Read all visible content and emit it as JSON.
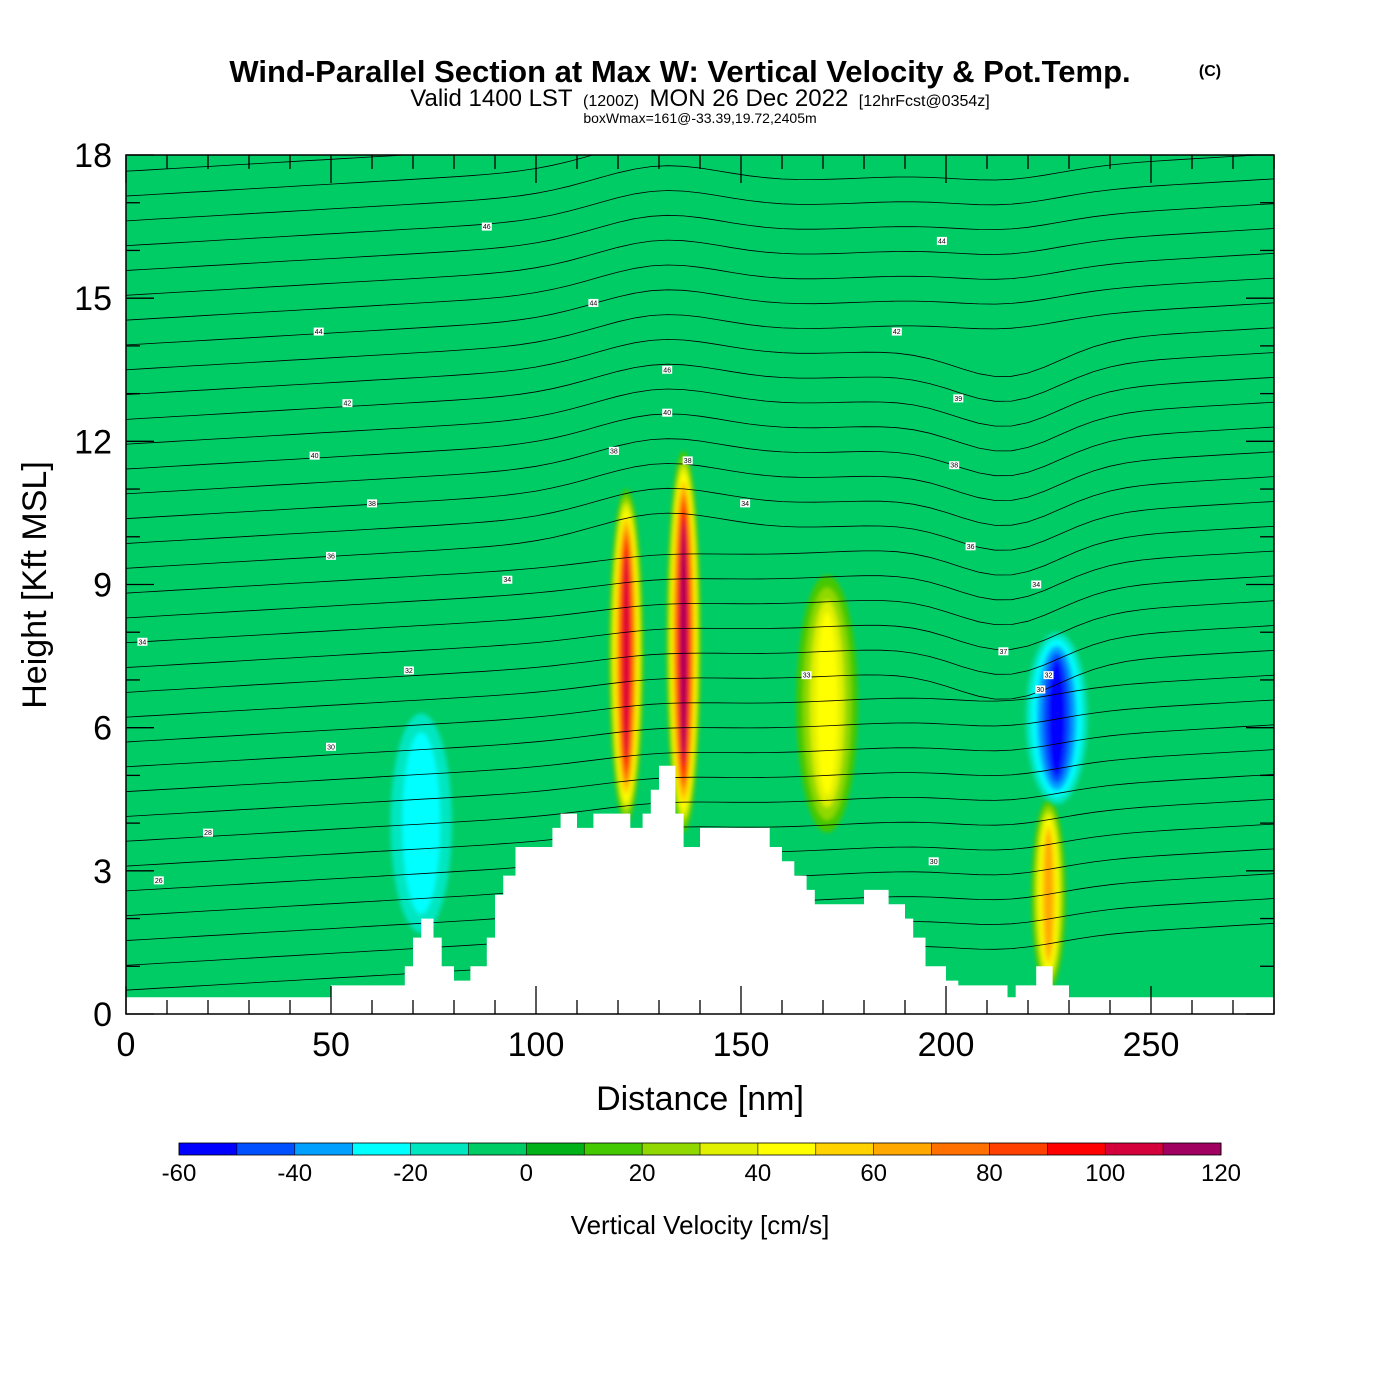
{
  "title": {
    "main": "Wind-Parallel Section at Max W: Vertical Velocity & Pot.Temp.",
    "copyright": "(C)",
    "valid_prefix": "Valid 1400 LST",
    "valid_utc": "(1200Z)",
    "valid_date": "MON 26 Dec 2022",
    "forecast": "[12hrFcst@0354z]",
    "box_info": "boxWmax=161@-33.39,19.72,2405m"
  },
  "chart_data": {
    "type": "heatmap",
    "xlabel": "Distance [nm]",
    "ylabel": "Height [Kft MSL]",
    "xlim": [
      0,
      280
    ],
    "ylim": [
      0,
      18
    ],
    "x_ticks": [
      "0",
      "50",
      "100",
      "150",
      "200",
      "250"
    ],
    "y_ticks": [
      "0",
      "3",
      "6",
      "9",
      "12",
      "15",
      "18"
    ],
    "background_value": 0,
    "updrafts": [
      {
        "x": 122,
        "y_center": 7.5,
        "y_top": 11.0,
        "peak": 100
      },
      {
        "x": 136,
        "y_center": 7.8,
        "y_top": 11.8,
        "peak": 110
      },
      {
        "x": 171,
        "y_center": 6.5,
        "y_top": 9.2,
        "peak": 45
      },
      {
        "x": 225,
        "y_center": 2.5,
        "y_top": 4.5,
        "peak": 65
      },
      {
        "x": 72,
        "y_center": 4.0,
        "y_top": 6.3,
        "peak": -25
      },
      {
        "x": 227,
        "y_center": 6.2,
        "y_top": 8.0,
        "peak": -55
      }
    ],
    "terrain": [
      [
        0,
        0.35
      ],
      [
        50,
        0.35
      ],
      [
        50,
        0.6
      ],
      [
        68,
        0.6
      ],
      [
        68,
        1.0
      ],
      [
        70,
        1.0
      ],
      [
        70,
        1.6
      ],
      [
        72,
        1.6
      ],
      [
        72,
        2.0
      ],
      [
        75,
        2.0
      ],
      [
        75,
        1.6
      ],
      [
        77,
        1.6
      ],
      [
        77,
        1.0
      ],
      [
        80,
        1.0
      ],
      [
        80,
        0.7
      ],
      [
        84,
        0.7
      ],
      [
        84,
        1.0
      ],
      [
        88,
        1.0
      ],
      [
        88,
        1.6
      ],
      [
        90,
        1.6
      ],
      [
        90,
        2.5
      ],
      [
        92,
        2.5
      ],
      [
        92,
        2.9
      ],
      [
        95,
        2.9
      ],
      [
        95,
        3.5
      ],
      [
        104,
        3.5
      ],
      [
        104,
        3.9
      ],
      [
        106,
        3.9
      ],
      [
        106,
        4.2
      ],
      [
        110,
        4.2
      ],
      [
        110,
        3.9
      ],
      [
        114,
        3.9
      ],
      [
        114,
        4.2
      ],
      [
        123,
        4.2
      ],
      [
        123,
        3.9
      ],
      [
        126,
        3.9
      ],
      [
        126,
        4.2
      ],
      [
        128,
        4.2
      ],
      [
        128,
        4.7
      ],
      [
        130,
        4.7
      ],
      [
        130,
        5.2
      ],
      [
        134,
        5.2
      ],
      [
        134,
        4.2
      ],
      [
        136,
        4.2
      ],
      [
        136,
        3.5
      ],
      [
        140,
        3.5
      ],
      [
        140,
        3.9
      ],
      [
        157,
        3.9
      ],
      [
        157,
        3.5
      ],
      [
        160,
        3.5
      ],
      [
        160,
        3.2
      ],
      [
        163,
        3.2
      ],
      [
        163,
        2.9
      ],
      [
        166,
        2.9
      ],
      [
        166,
        2.6
      ],
      [
        168,
        2.6
      ],
      [
        168,
        2.3
      ],
      [
        180,
        2.3
      ],
      [
        180,
        2.6
      ],
      [
        186,
        2.6
      ],
      [
        186,
        2.3
      ],
      [
        190,
        2.3
      ],
      [
        190,
        2.0
      ],
      [
        192,
        2.0
      ],
      [
        192,
        1.6
      ],
      [
        195,
        1.6
      ],
      [
        195,
        1.0
      ],
      [
        200,
        1.0
      ],
      [
        200,
        0.7
      ],
      [
        203,
        0.7
      ],
      [
        203,
        0.6
      ],
      [
        215,
        0.6
      ],
      [
        215,
        0.35
      ],
      [
        217,
        0.35
      ],
      [
        217,
        0.6
      ],
      [
        222,
        0.6
      ],
      [
        222,
        1.0
      ],
      [
        226,
        1.0
      ],
      [
        226,
        0.6
      ],
      [
        230,
        0.6
      ],
      [
        230,
        0.35
      ],
      [
        280,
        0.35
      ]
    ],
    "contour_labels": [
      {
        "text": "46",
        "x": 88,
        "y": 16.5
      },
      {
        "text": "44",
        "x": 114,
        "y": 14.9
      },
      {
        "text": "44",
        "x": 47,
        "y": 14.3
      },
      {
        "text": "42",
        "x": 54,
        "y": 12.8
      },
      {
        "text": "40",
        "x": 46,
        "y": 11.7
      },
      {
        "text": "38",
        "x": 60,
        "y": 10.7
      },
      {
        "text": "36",
        "x": 50,
        "y": 9.6
      },
      {
        "text": "34",
        "x": 93,
        "y": 9.1
      },
      {
        "text": "32",
        "x": 69,
        "y": 7.2
      },
      {
        "text": "34",
        "x": 4,
        "y": 7.8
      },
      {
        "text": "30",
        "x": 50,
        "y": 5.6
      },
      {
        "text": "28",
        "x": 20,
        "y": 3.8
      },
      {
        "text": "26",
        "x": 8,
        "y": 2.8
      },
      {
        "text": "38",
        "x": 119,
        "y": 11.8
      },
      {
        "text": "46",
        "x": 132,
        "y": 13.5
      },
      {
        "text": "40",
        "x": 132,
        "y": 12.6
      },
      {
        "text": "38",
        "x": 137,
        "y": 11.6
      },
      {
        "text": "34",
        "x": 151,
        "y": 10.7
      },
      {
        "text": "44",
        "x": 199,
        "y": 16.2
      },
      {
        "text": "42",
        "x": 188,
        "y": 14.3
      },
      {
        "text": "39",
        "x": 203,
        "y": 12.9
      },
      {
        "text": "38",
        "x": 202,
        "y": 11.5
      },
      {
        "text": "36",
        "x": 206,
        "y": 9.8
      },
      {
        "text": "37",
        "x": 214,
        "y": 7.6
      },
      {
        "text": "34",
        "x": 222,
        "y": 9.0
      },
      {
        "text": "33",
        "x": 166,
        "y": 7.1
      },
      {
        "text": "30",
        "x": 197,
        "y": 3.2
      },
      {
        "text": "32",
        "x": 225,
        "y": 7.1
      },
      {
        "text": "30",
        "x": 223,
        "y": 6.8
      }
    ],
    "colorbar": {
      "title": "Vertical Velocity [cm/s]",
      "labels": [
        "-60",
        "-40",
        "-20",
        "0",
        "20",
        "40",
        "60",
        "80",
        "100",
        "120"
      ],
      "levels": [
        -60,
        -50,
        -40,
        -30,
        -20,
        -10,
        0,
        10,
        20,
        30,
        40,
        50,
        60,
        70,
        80,
        90,
        100,
        110,
        120
      ],
      "colors": [
        "#0000ff",
        "#0050ff",
        "#00a0ff",
        "#00ffff",
        "#00e6c0",
        "#00cc66",
        "#00b218",
        "#44c800",
        "#90d800",
        "#e0f000",
        "#ffff00",
        "#ffd200",
        "#ffa800",
        "#ff7000",
        "#ff4000",
        "#ff0000",
        "#d4003c",
        "#a00060"
      ]
    }
  }
}
